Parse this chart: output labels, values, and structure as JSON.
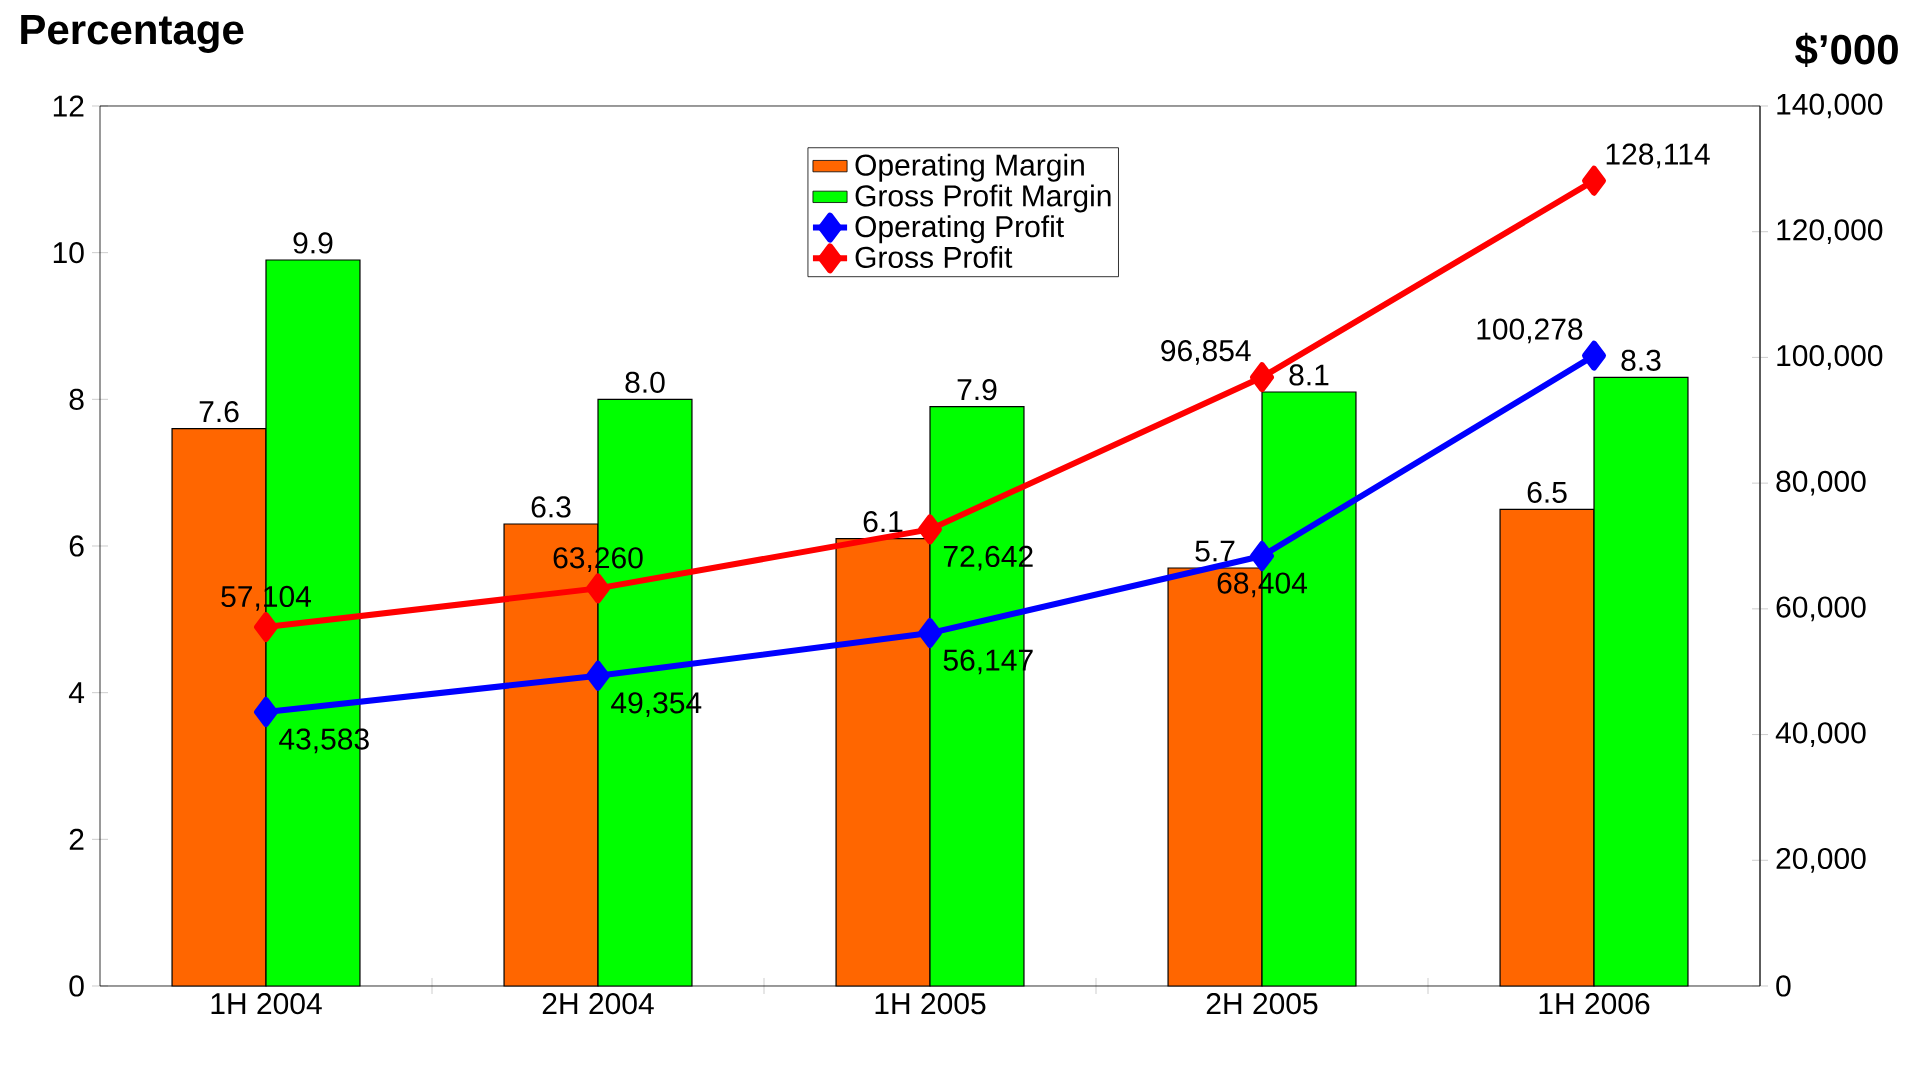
{
  "chart_data": {
    "type": "bar",
    "ylabel": "Percentage",
    "y2label": "$’000",
    "categories": [
      "1H 2004",
      "2H 2004",
      "1H 2005",
      "2H 2005",
      "1H 2006"
    ],
    "series": [
      {
        "name": "Operating Margin",
        "color": "#ff6600",
        "values": [
          7.6,
          6.3,
          6.1,
          5.7,
          6.5
        ],
        "value_labels": [
          "7.6",
          "6.3",
          "6.1",
          "5.7",
          "6.5"
        ]
      },
      {
        "name": "Gross Profit Margin",
        "color": "#00ff00",
        "values": [
          9.9,
          8.0,
          7.9,
          8.1,
          8.3
        ],
        "value_labels": [
          "9.9",
          "8.0",
          "7.9",
          "8.1",
          "8.3"
        ]
      },
      {
        "name": "Operating Profit",
        "type": "line",
        "axis": "y2",
        "color": "#0000ff",
        "marker": "diamond",
        "values": [
          43583,
          49354,
          56147,
          68404,
          100278
        ],
        "value_labels": [
          "43,583",
          "49,354",
          "56,147",
          "68,404",
          "100,278"
        ]
      },
      {
        "name": "Gross Profit",
        "type": "line",
        "axis": "y2",
        "color": "#ff0000",
        "marker": "diamond",
        "values": [
          57104,
          63260,
          72642,
          96854,
          128114
        ],
        "value_labels": [
          "57,104",
          "63,260",
          "72,642",
          "96,854",
          "128,114"
        ]
      }
    ],
    "ylim": [
      0,
      12
    ],
    "yticks": [
      0,
      2,
      4,
      6,
      8,
      10,
      12
    ],
    "y2lim": [
      0,
      140000
    ],
    "y2ticks": [
      0,
      {
        "value": 20000,
        "label": "20,000"
      },
      {
        "value": 40000,
        "label": "40,000"
      },
      {
        "value": 60000,
        "label": "60,000"
      },
      {
        "value": 80000,
        "label": "80,000"
      },
      {
        "value": 100000,
        "label": "100,000"
      },
      {
        "value": 120000,
        "label": "120,000"
      },
      {
        "value": 140000,
        "label": "140,000"
      }
    ],
    "legend": "top"
  }
}
